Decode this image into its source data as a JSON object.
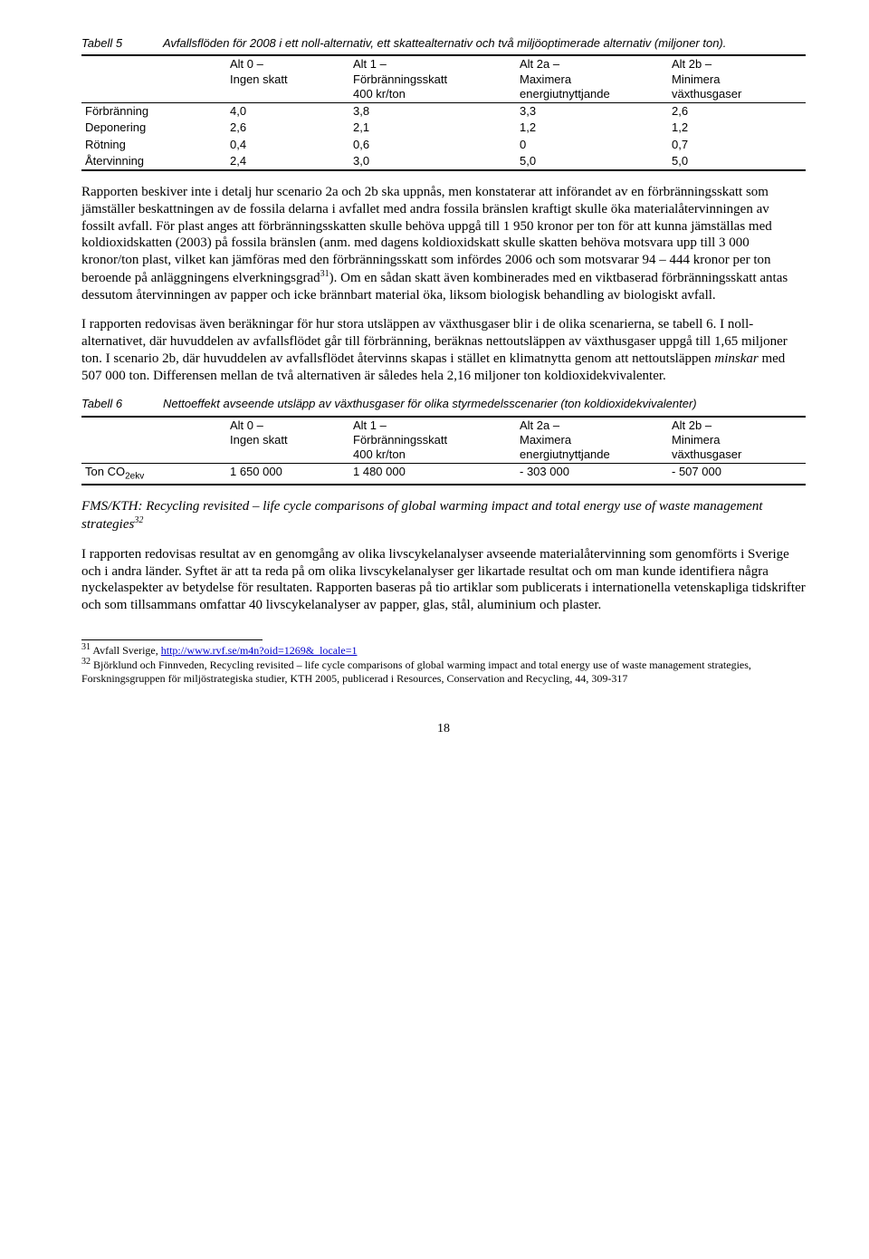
{
  "table5": {
    "caption_label": "Tabell 5",
    "caption_text": "Avfallsflöden för 2008 i ett noll-alternativ, ett skattealternativ och två miljöoptimerade alternativ (miljoner ton).",
    "headers": {
      "c0": "",
      "c1a": "Alt 0 –",
      "c1b": "Ingen skatt",
      "c2a": "Alt 1 –",
      "c2b": "Förbränningsskatt",
      "c2c": "400 kr/ton",
      "c3a": "Alt 2a –",
      "c3b": "Maximera",
      "c3c": "energiutnyttjande",
      "c4a": "Alt 2b –",
      "c4b": "Minimera",
      "c4c": "växthusgaser"
    },
    "rows": [
      {
        "l": "Förbränning",
        "a": "4,0",
        "b": "3,8",
        "c": "3,3",
        "d": "2,6"
      },
      {
        "l": "Deponering",
        "a": "2,6",
        "b": "2,1",
        "c": "1,2",
        "d": "1,2"
      },
      {
        "l": "Rötning",
        "a": "0,4",
        "b": "0,6",
        "c": "0",
        "d": "0,7"
      },
      {
        "l": "Återvinning",
        "a": "2,4",
        "b": "3,0",
        "c": "5,0",
        "d": "5,0"
      }
    ]
  },
  "para1": "Rapporten beskiver inte i detalj hur scenario 2a och 2b ska uppnås, men konstaterar att införandet av en förbränningsskatt som jämställer beskattningen av de fossila delarna i avfallet med andra fossila bränslen kraftigt skulle öka materialåtervinningen av fossilt avfall. För plast anges att förbränningsskatten skulle behöva uppgå till 1 950 kronor per ton för att kunna jämställas med koldioxidskatten (2003) på fossila bränslen (anm. med dagens koldioxidskatt skulle skatten behöva motsvara upp till 3 000 kronor/ton plast, vilket kan jämföras med den förbränningsskatt som infördes 2006 och som motsvarar 94 – 444 kronor per ton beroende på anläggningens elverkningsgrad",
  "para1_sup": "31",
  "para1_tail": "). Om en sådan skatt även kombinerades med en viktbaserad förbränningsskatt antas dessutom återvinningen av papper och icke brännbart material öka, liksom biologisk behandling av biologiskt avfall.",
  "para2": "I rapporten redovisas även beräkningar för hur stora utsläppen av växthusgaser blir i de olika scenarierna, se tabell 6. I noll-alternativet, där huvuddelen av avfallsflödet går till förbränning, beräknas nettoutsläppen av växthusgaser uppgå till 1,65 miljoner ton. I scenario 2b, där huvuddelen av avfallsflödet återvinns skapas i stället en klimatnytta genom att nettoutsläppen ",
  "para2_ital": "minskar",
  "para2_tail": " med 507 000 ton. Differensen mellan de två alternativen är således hela 2,16 miljoner ton koldioxidekvivalenter.",
  "table6": {
    "caption_label": "Tabell 6",
    "caption_text": "Nettoeffekt avseende utsläpp av växthusgaser för olika styrmedelsscenarier (ton koldioxidekvivalenter)",
    "row": {
      "l_pre": "Ton CO",
      "l_sub": "2ekv",
      "a": "1 650 000",
      "b": "1 480 000",
      "c": "- 303 000",
      "d": "- 507 000"
    }
  },
  "subhead_title": "FMS/KTH: Recycling revisited – life cycle comparisons of global warming impact and total energy use of waste management strategies",
  "subhead_sup": "32",
  "para3": "I rapporten redovisas resultat av en genomgång av olika livscykelanalyser avseende materialåtervinning som genomförts i Sverige och i andra länder. Syftet är att ta reda på om olika livscykelanalyser ger likartade resultat och om man kunde identifiera några nyckelaspekter av betydelse för resultaten. Rapporten baseras på tio artiklar som publicerats i internationella vetenskapliga tidskrifter och som tillsammans omfattar 40 livscykelanalyser av papper, glas, stål, aluminium och plaster.",
  "footnotes": {
    "f31_num": "31",
    "f31_pre": " Avfall Sverige, ",
    "f31_link": "http://www.rvf.se/m4n?oid=1269&_locale=1",
    "f32_num": "32",
    "f32_text": " Björklund och Finnveden, Recycling revisited – life cycle comparisons of global warming impact and total energy use of waste management strategies, Forskningsgruppen för miljöstrategiska studier, KTH 2005, publicerad i Resources, Conservation and Recycling, 44, 309-317"
  },
  "page_num": "18",
  "col_widths": {
    "c0": "20%",
    "c1": "17%",
    "c2": "23%",
    "c3": "21%",
    "c4": "19%"
  }
}
